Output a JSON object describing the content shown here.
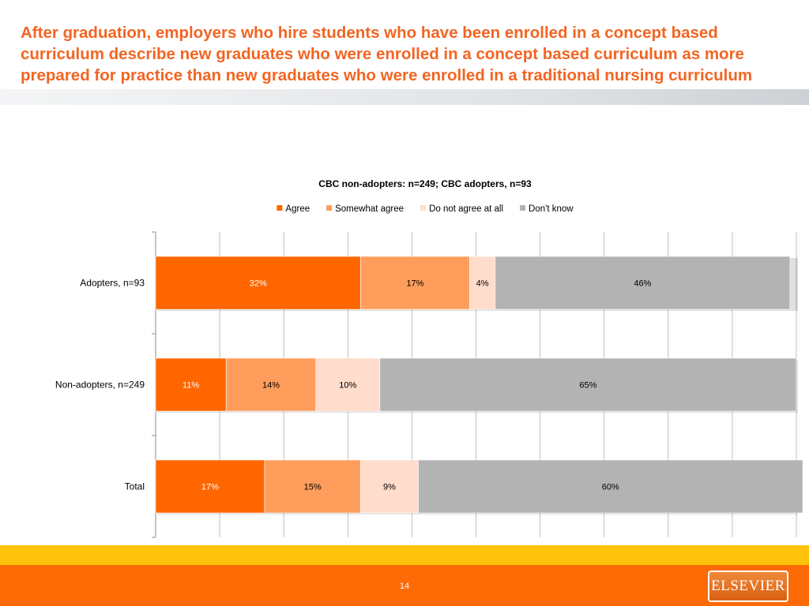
{
  "slide": {
    "title": "After graduation, employers who hire students who have been enrolled in a concept based curriculum describe new graduates who were enrolled in a concept based curriculum as more prepared for practice than new graduates who were enrolled in a traditional nursing curriculum",
    "page_number": "14",
    "logo_text": "ELSEVIER"
  },
  "colors": {
    "title": "#f26522",
    "agree": "#ff6600",
    "somewhat_agree": "#ff9d5c",
    "do_not_agree": "#ffdccb",
    "dont_know": "#b3b3b3",
    "footer_yellow": "#fec30a",
    "footer_orange": "#fd6a06"
  },
  "chart_data": {
    "type": "bar",
    "orientation": "horizontal",
    "stacked": true,
    "title": "CBC non-adopters: n=249; CBC adopters, n=93",
    "categories": [
      "Adopters, n=93",
      "Non-adopters, n=249",
      "Total"
    ],
    "series": [
      {
        "name": "Agree",
        "values": [
          32,
          11,
          17
        ],
        "labels": [
          "32%",
          "11%",
          "17%"
        ],
        "color": "#ff6600",
        "label_color": "#ffffff"
      },
      {
        "name": "Somewhat agree",
        "values": [
          17,
          14,
          15
        ],
        "labels": [
          "17%",
          "14%",
          "15%"
        ],
        "color": "#ff9d5c",
        "label_color": "#000000"
      },
      {
        "name": "Do not agree at all",
        "values": [
          4,
          10,
          9
        ],
        "labels": [
          "4%",
          "10%",
          "9%"
        ],
        "color": "#ffdccb",
        "label_color": "#000000"
      },
      {
        "name": "Don't know",
        "values": [
          46,
          65,
          60
        ],
        "labels": [
          "46%",
          "65%",
          "60%"
        ],
        "color": "#b3b3b3",
        "label_color": "#000000"
      }
    ],
    "xlim": [
      0,
      100
    ],
    "grid": true,
    "legend_position": "top"
  }
}
